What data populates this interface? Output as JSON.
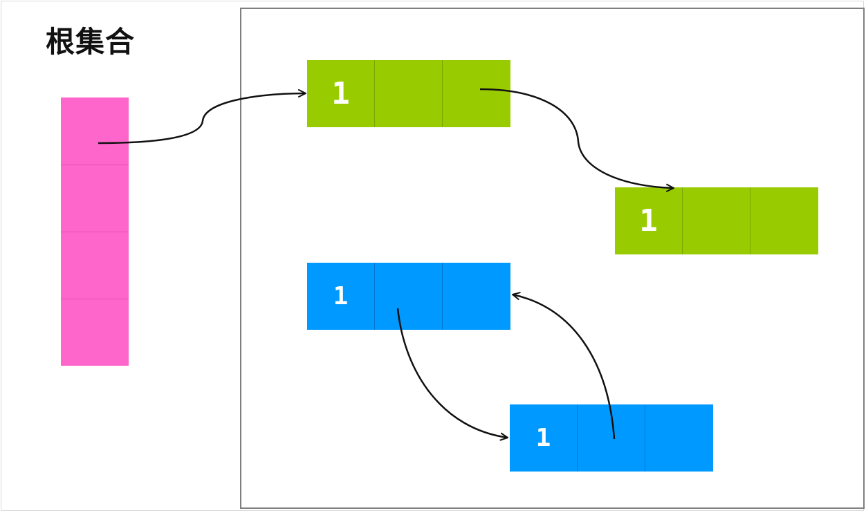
{
  "root_set": {
    "title": "根集合",
    "slot_count": 4,
    "color": "#ff66cc"
  },
  "heap": {
    "border_color": "#7f7f7f",
    "objects": [
      {
        "id": "green-object-1",
        "color": "#99cc00",
        "ref_count": "1"
      },
      {
        "id": "green-object-2",
        "color": "#99cc00",
        "ref_count": "1"
      },
      {
        "id": "blue-object-1",
        "color": "#0099ff",
        "ref_count": "1"
      },
      {
        "id": "blue-object-2",
        "color": "#0099ff",
        "ref_count": "1"
      }
    ]
  },
  "references": [
    {
      "from": "root-slot-1",
      "to": "green-object-1"
    },
    {
      "from": "green-object-1",
      "to": "green-object-2"
    },
    {
      "from": "blue-object-1",
      "to": "blue-object-2"
    },
    {
      "from": "blue-object-2",
      "to": "blue-object-1"
    }
  ]
}
